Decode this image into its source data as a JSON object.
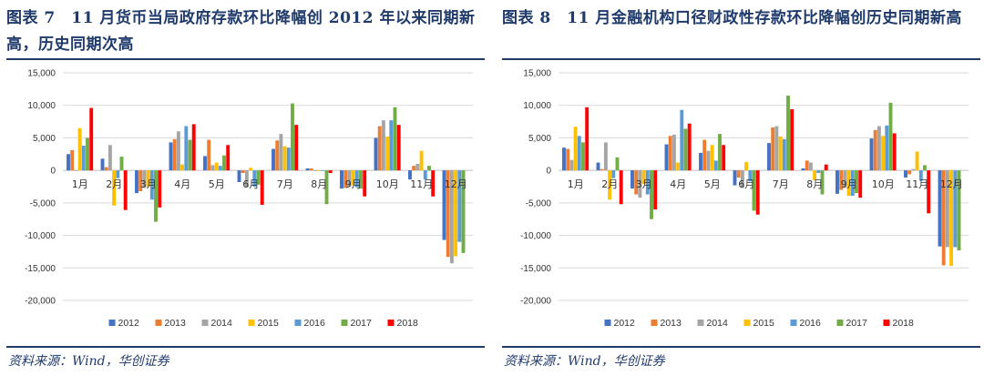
{
  "colors": {
    "title": "#1f3a6b",
    "series": [
      "#4472c4",
      "#ed7d31",
      "#a5a5a5",
      "#ffc000",
      "#5b9bd5",
      "#70ad47",
      "#ff0000"
    ]
  },
  "left": {
    "title": "图表 7　11 月货币当局政府存款环比降幅创 2012 年以来同期新高，历史同期次高",
    "source": "资料来源：Wind，华创证券"
  },
  "right": {
    "title": "图表 8　11 月金融机构口径财政性存款环比降幅创历史同期新高",
    "source": "资料来源：Wind，华创证券"
  },
  "chart_data": [
    {
      "type": "bar",
      "ylim": [
        -20000,
        15000
      ],
      "yticks": [
        15000,
        10000,
        5000,
        0,
        -5000,
        -10000,
        -15000,
        -20000
      ],
      "ytick_labels": [
        "15,000",
        "10,000",
        "5,000",
        "0",
        "-5,000",
        "-10,000",
        "-15,000",
        "-20,000"
      ],
      "grid": true,
      "legend": "bottom",
      "categories": [
        "1月",
        "2月",
        "3月",
        "4月",
        "5月",
        "6月",
        "7月",
        "8月",
        "9月",
        "10月",
        "11月",
        "12月"
      ],
      "series": [
        {
          "name": "2012",
          "values": [
            2500,
            1800,
            -3500,
            4300,
            2200,
            -1800,
            3300,
            300,
            -2800,
            5000,
            -1400,
            -10700
          ]
        },
        {
          "name": "2013",
          "values": [
            3100,
            500,
            -3200,
            4800,
            4700,
            -400,
            4600,
            300,
            -2700,
            6800,
            700,
            -13300
          ]
        },
        {
          "name": "2014",
          "values": [
            -100,
            3900,
            -2700,
            6000,
            800,
            -2600,
            5600,
            -100,
            -2500,
            7700,
            1000,
            -14300
          ]
        },
        {
          "name": "2015",
          "values": [
            6500,
            -5400,
            -2500,
            900,
            1200,
            400,
            3700,
            -100,
            -2300,
            5200,
            3000,
            -13200
          ]
        },
        {
          "name": "2016",
          "values": [
            3800,
            -1200,
            -4500,
            6800,
            700,
            -2500,
            3500,
            -100,
            -2600,
            7700,
            -1400,
            -11000
          ]
        },
        {
          "name": "2017",
          "values": [
            5000,
            2100,
            -7900,
            4700,
            2300,
            -2200,
            10300,
            -5200,
            -2800,
            9700,
            700,
            -12700
          ]
        },
        {
          "name": "2018",
          "values": [
            9600,
            -6100,
            -5700,
            7100,
            3900,
            -5300,
            7000,
            -400,
            -4000,
            7000,
            -4000,
            null
          ]
        }
      ]
    },
    {
      "type": "bar",
      "ylim": [
        -20000,
        15000
      ],
      "yticks": [
        15000,
        10000,
        5000,
        0,
        -5000,
        -10000,
        -15000,
        -20000
      ],
      "ytick_labels": [
        "15,000",
        "10,000",
        "5,000",
        "0",
        "-5,000",
        "-10,000",
        "-15,000",
        "-20,000"
      ],
      "grid": true,
      "legend": "bottom",
      "categories": [
        "1月",
        "2月",
        "3月",
        "4月",
        "5月",
        "6月",
        "7月",
        "8月",
        "9月",
        "10月",
        "11月",
        "12月"
      ],
      "series": [
        {
          "name": "2012",
          "values": [
            3500,
            1200,
            -2800,
            4000,
            2700,
            -2300,
            4200,
            300,
            -3600,
            4900,
            -1100,
            -11700
          ]
        },
        {
          "name": "2013",
          "values": [
            3300,
            200,
            -3700,
            5300,
            4700,
            -1100,
            6600,
            1500,
            -3000,
            6200,
            -600,
            -14600
          ]
        },
        {
          "name": "2014",
          "values": [
            1600,
            4300,
            -4200,
            5500,
            3000,
            -2700,
            6800,
            1200,
            -2700,
            6800,
            200,
            -11800
          ]
        },
        {
          "name": "2015",
          "values": [
            6700,
            -4500,
            -2100,
            1200,
            3900,
            1300,
            5200,
            -1500,
            -3900,
            5300,
            2900,
            -14700
          ]
        },
        {
          "name": "2016",
          "values": [
            5300,
            -1200,
            -3700,
            9300,
            1500,
            -1700,
            4800,
            -400,
            -3900,
            6900,
            -1600,
            -11800
          ]
        },
        {
          "name": "2017",
          "values": [
            4300,
            2000,
            -7500,
            6400,
            5600,
            -6200,
            11500,
            -3700,
            -3500,
            10400,
            800,
            -12300
          ]
        },
        {
          "name": "2018",
          "values": [
            9700,
            -5200,
            -6000,
            7200,
            3900,
            -6800,
            9400,
            900,
            -4200,
            5700,
            -6600,
            null
          ]
        }
      ]
    }
  ]
}
